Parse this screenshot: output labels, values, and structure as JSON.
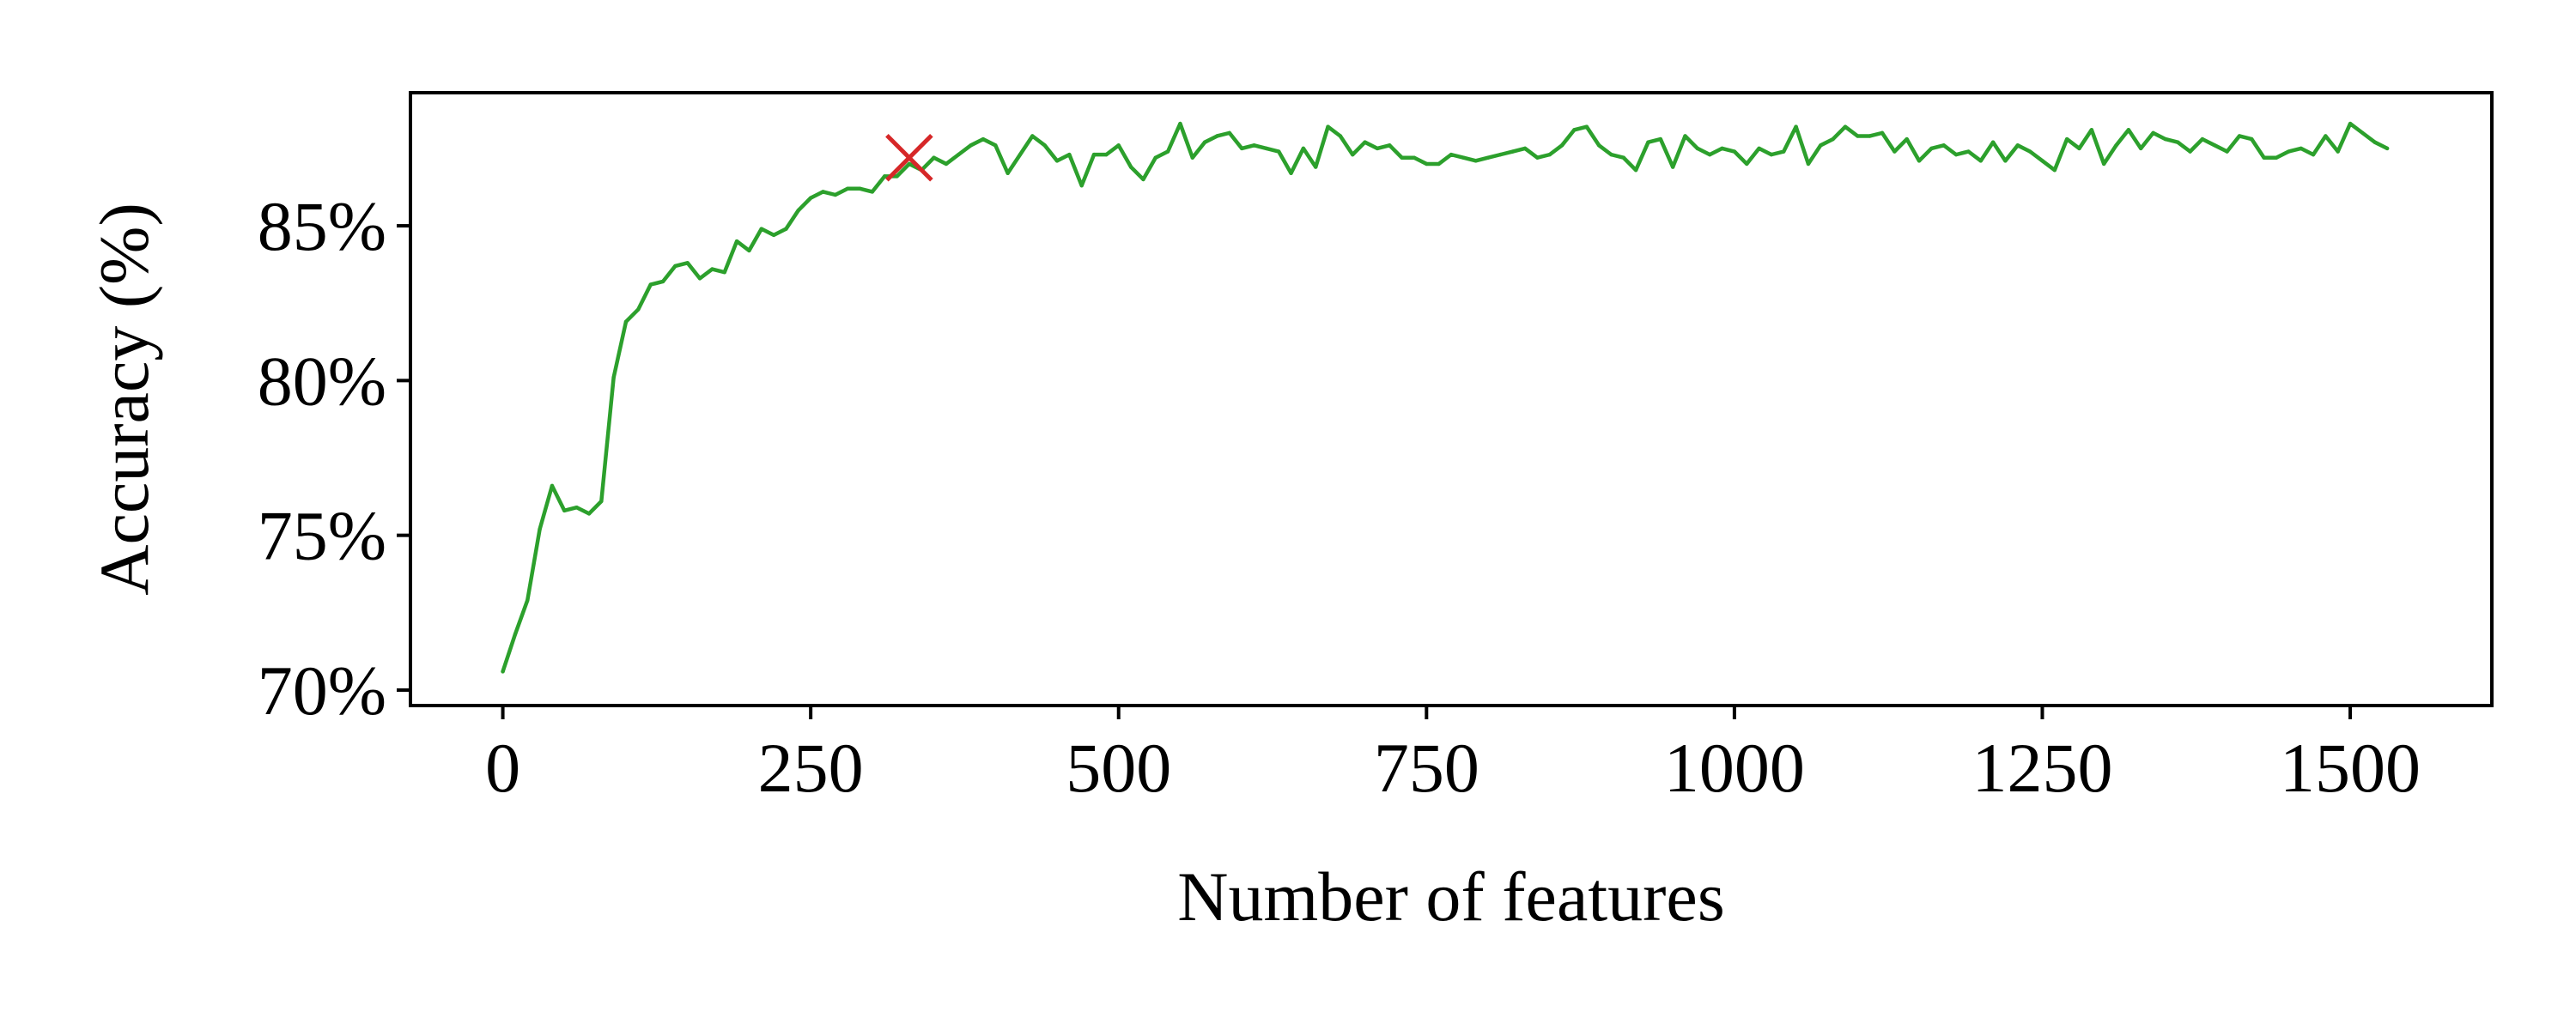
{
  "chart_data": {
    "type": "line",
    "title": "",
    "xlabel": "Number of features",
    "ylabel": "Accuracy (%)",
    "xlim": [
      -75,
      1615
    ],
    "ylim": [
      69.5,
      89.3
    ],
    "x_ticks": [
      0,
      250,
      500,
      750,
      1000,
      1250,
      1500
    ],
    "x_tick_labels": [
      "0",
      "250",
      "500",
      "750",
      "1000",
      "1250",
      "1500"
    ],
    "y_ticks": [
      70,
      75,
      80,
      85
    ],
    "y_tick_labels": [
      "70%",
      "75%",
      "80%",
      "85%"
    ],
    "grid": false,
    "legend": "none",
    "series": [
      {
        "color": "#2ca02c",
        "x": [
          0,
          10,
          20,
          30,
          40,
          50,
          60,
          70,
          80,
          90,
          100,
          110,
          120,
          130,
          140,
          150,
          160,
          170,
          180,
          190,
          200,
          210,
          220,
          230,
          240,
          250,
          260,
          270,
          280,
          290,
          300,
          310,
          320,
          330,
          340,
          350,
          360,
          370,
          380,
          390,
          400,
          410,
          420,
          430,
          440,
          450,
          460,
          470,
          480,
          490,
          500,
          510,
          520,
          530,
          540,
          550,
          560,
          570,
          580,
          590,
          600,
          610,
          620,
          630,
          640,
          650,
          660,
          670,
          680,
          690,
          700,
          710,
          720,
          730,
          740,
          750,
          760,
          770,
          780,
          790,
          800,
          810,
          820,
          830,
          840,
          850,
          860,
          870,
          880,
          890,
          900,
          910,
          920,
          930,
          940,
          950,
          960,
          970,
          980,
          990,
          1000,
          1010,
          1020,
          1030,
          1040,
          1050,
          1060,
          1070,
          1080,
          1090,
          1100,
          1110,
          1120,
          1130,
          1140,
          1150,
          1160,
          1170,
          1180,
          1190,
          1200,
          1210,
          1220,
          1230,
          1240,
          1250,
          1260,
          1270,
          1280,
          1290,
          1300,
          1310,
          1320,
          1330,
          1340,
          1350,
          1360,
          1370,
          1380,
          1390,
          1400,
          1410,
          1420,
          1430,
          1440,
          1450,
          1460,
          1470,
          1480,
          1490,
          1500,
          1510,
          1520,
          1530
        ],
        "y": [
          70.6,
          71.8,
          72.9,
          75.2,
          76.6,
          75.8,
          75.9,
          75.7,
          76.1,
          80.1,
          81.9,
          82.3,
          83.1,
          83.2,
          83.7,
          83.8,
          83.3,
          83.6,
          83.5,
          84.5,
          84.2,
          84.9,
          84.7,
          84.9,
          85.5,
          85.9,
          86.1,
          86.0,
          86.2,
          86.2,
          86.1,
          86.6,
          86.6,
          87.0,
          86.8,
          87.2,
          87.0,
          87.3,
          87.6,
          87.8,
          87.6,
          86.7,
          87.3,
          87.9,
          87.6,
          87.1,
          87.3,
          86.3,
          87.3,
          87.3,
          87.6,
          86.9,
          86.5,
          87.2,
          87.4,
          88.3,
          87.2,
          87.7,
          87.9,
          88.0,
          87.5,
          87.6,
          87.5,
          87.4,
          86.7,
          87.5,
          86.9,
          88.2,
          87.9,
          87.3,
          87.7,
          87.5,
          87.6,
          87.2,
          87.2,
          87.0,
          87.0,
          87.3,
          87.2,
          87.1,
          87.2,
          87.3,
          87.4,
          87.5,
          87.2,
          87.3,
          87.6,
          88.1,
          88.2,
          87.6,
          87.3,
          87.2,
          86.8,
          87.7,
          87.8,
          86.9,
          87.9,
          87.5,
          87.3,
          87.5,
          87.4,
          87.0,
          87.5,
          87.3,
          87.4,
          88.2,
          87.0,
          87.6,
          87.8,
          88.2,
          87.9,
          87.9,
          88.0,
          87.4,
          87.8,
          87.1,
          87.5,
          87.6,
          87.3,
          87.4,
          87.1,
          87.7,
          87.1,
          87.6,
          87.4,
          87.1,
          86.8,
          87.8,
          87.5,
          88.1,
          87.0,
          87.6,
          88.1,
          87.5,
          88.0,
          87.8,
          87.7,
          87.4,
          87.8,
          87.6,
          87.4,
          87.9,
          87.8,
          87.2,
          87.2,
          87.4,
          87.5,
          87.3,
          87.9,
          87.4,
          88.3,
          88.0,
          87.7,
          87.5
        ]
      }
    ],
    "marker": {
      "x": 330,
      "y": 87.2,
      "symbol": "x",
      "color": "#d62728"
    }
  }
}
